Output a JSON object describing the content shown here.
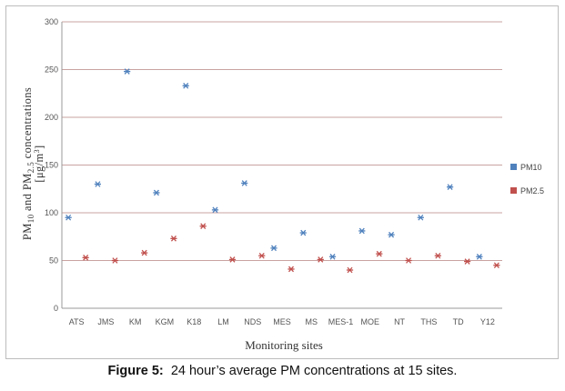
{
  "chart_data": {
    "type": "scatter",
    "categories": [
      "ATS",
      "JMS",
      "KM",
      "KGM",
      "K18",
      "LM",
      "NDS",
      "MES",
      "MS",
      "MES-1",
      "MOE",
      "NT",
      "THS",
      "TD",
      "Y12"
    ],
    "series": [
      {
        "name": "PM10",
        "color": "#4f81bd",
        "marker": "asterisk",
        "values": [
          95,
          130,
          248,
          121,
          233,
          103,
          131,
          63,
          79,
          54,
          81,
          77,
          95,
          127,
          54
        ]
      },
      {
        "name": "PM2.5",
        "color": "#c0504d",
        "marker": "asterisk",
        "values": [
          53,
          50,
          58,
          73,
          86,
          51,
          55,
          41,
          51,
          40,
          57,
          50,
          55,
          49,
          45
        ]
      }
    ],
    "y_ticks": [
      "0",
      "50",
      "100",
      "150",
      "200",
      "250",
      "300"
    ],
    "ylim": [
      0,
      300
    ],
    "xlabel": "Monitoring sites",
    "ylabel": {
      "p1": "PM",
      "s1": "10",
      "p2": " and PM",
      "s2": "2.5",
      "p3": " concentrations",
      "line2": "[μg/m",
      "sup": "3",
      "line2_end": "]"
    },
    "grid": true,
    "legend_position": "right"
  },
  "caption": {
    "label": "Figure 5:",
    "text": "24 hour’s average PM concentrations at 15 sites."
  }
}
